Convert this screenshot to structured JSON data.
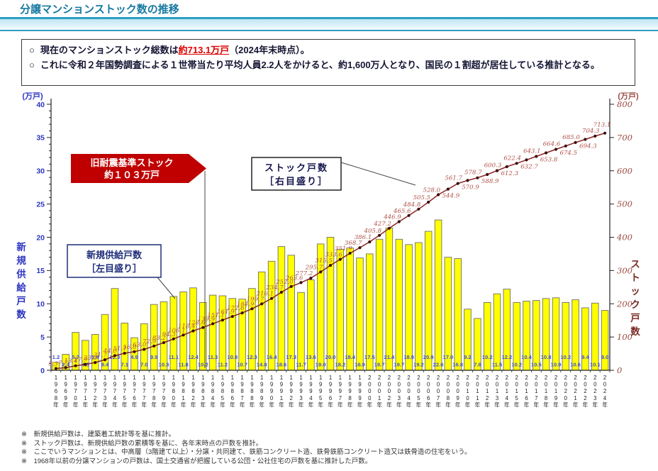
{
  "header": {
    "title": "分譲マンションストック数の推移"
  },
  "summary": {
    "bullet_mark": "○",
    "bullet1_pre": "現在のマンションストック総数は",
    "bullet1_highlight": "約713.1万戸",
    "bullet1_post": "（2024年末時点）。",
    "bullet2": "これに令和２年国勢調査による１世帯当たり平均人員2.2人をかけると、約1,600万人となり、国民の１割超が居住している推計となる。"
  },
  "chart_data": {
    "type": "bar+line",
    "years": [
      1968,
      1969,
      1970,
      1971,
      1972,
      1973,
      1974,
      1975,
      1976,
      1977,
      1978,
      1979,
      1980,
      1981,
      1982,
      1983,
      1984,
      1985,
      1986,
      1987,
      1988,
      1989,
      1990,
      1991,
      1992,
      1993,
      1994,
      1995,
      1996,
      1997,
      1998,
      1999,
      2000,
      2001,
      2002,
      2003,
      2004,
      2005,
      2006,
      2007,
      2008,
      2009,
      2010,
      2011,
      2012,
      2013,
      2014,
      2015,
      2016,
      2017,
      2018,
      2019,
      2020,
      2021,
      2022,
      2023,
      2024
    ],
    "series": [
      {
        "name": "新規供給戸数",
        "type": "bar",
        "axis": "left",
        "values": [
          1.2,
          2.4,
          5.7,
          4.5,
          5.4,
          8.4,
          12.3,
          7.1,
          4.9,
          7.0,
          9.9,
          10.3,
          11.1,
          11.8,
          12.4,
          10.2,
          11.3,
          11.2,
          10.8,
          10.7,
          12.3,
          14.8,
          16.4,
          18.6,
          17.3,
          11.7,
          13.6,
          19.0,
          20.0,
          18.2,
          18.4,
          16.9,
          17.5,
          19.7,
          21.4,
          19.7,
          18.9,
          19.2,
          20.9,
          22.6,
          17.0,
          16.8,
          9.2,
          7.8,
          10.2,
          11.5,
          12.2,
          10.2,
          10.4,
          10.5,
          10.8,
          10.9,
          10.2,
          10.6,
          9.4,
          10.1,
          9.0
        ]
      },
      {
        "name": "ストック戸数",
        "type": "line",
        "axis": "right",
        "values": [
          5.3,
          7.7,
          13.4,
          17.9,
          23.3,
          31.7,
          44.0,
          51.1,
          56.0,
          63.0,
          72.9,
          83.2,
          94.3,
          106.1,
          118.4,
          128.6,
          139.9,
          151.1,
          161.9,
          172.6,
          184.9,
          199.7,
          216.1,
          234.7,
          252.0,
          263.6,
          277.2,
          295.7,
          315.5,
          333.6,
          351.9,
          368.7,
          386.1,
          405.8,
          427.2,
          446.9,
          465.6,
          484.8,
          505.5,
          528.0,
          544.9,
          561.7,
          570.9,
          578.7,
          588.9,
          600.3,
          612.3,
          622.4,
          632.7,
          643.1,
          653.8,
          664.6,
          674.5,
          685.0,
          694.3,
          704.3,
          713.1
        ]
      }
    ],
    "left_axis": {
      "unit": "(万戸)",
      "title": "新規供給戸数",
      "min": 0,
      "max": 40,
      "step": 5,
      "legend": "新規供給戸数［左目盛り］"
    },
    "right_axis": {
      "unit": "(万戸)",
      "title": "ストック戸数",
      "min": 0,
      "max": 800,
      "step": 100,
      "legend": "ストック戸数［右目盛り］"
    },
    "annotations": {
      "old_quake": [
        "旧耐震基準ストック",
        "約１０３万戸"
      ],
      "supply_box": [
        "新規供給戸数",
        "［左目盛り］"
      ],
      "stock_box": [
        "ストック戸数",
        "［右目盛り］"
      ]
    },
    "colors": {
      "bar_fill": "#ffff00",
      "bar_stroke": "#6f6f6f",
      "line": "#8b2222",
      "marker": "#3a0d0d",
      "stock_label": "#b0524a",
      "supply_label": "#3f4cd8",
      "left_text": "#2d35c0",
      "right_text": "#9c4b42",
      "red_box": "#c00000",
      "supply_box_border": "#1f2d7a"
    }
  },
  "notes": [
    "※　新規供給戸数は、建築着工統計等を基に推計。",
    "※　ストック戸数は、新規供給戸数の累積等を基に、各年末時点の戸数を推計。",
    "※　ここでいうマンションとは、中高層（3階建て以上）・分譲・共同建て、鉄筋コンクリート造、鉄骨鉄筋コンクリート造又は鉄骨造の住宅をいう。",
    "※　1968年以前の分譲マンションの戸数は、国土交通省が把握している公団・公社住宅の戸数を基に推計した戸数。"
  ]
}
